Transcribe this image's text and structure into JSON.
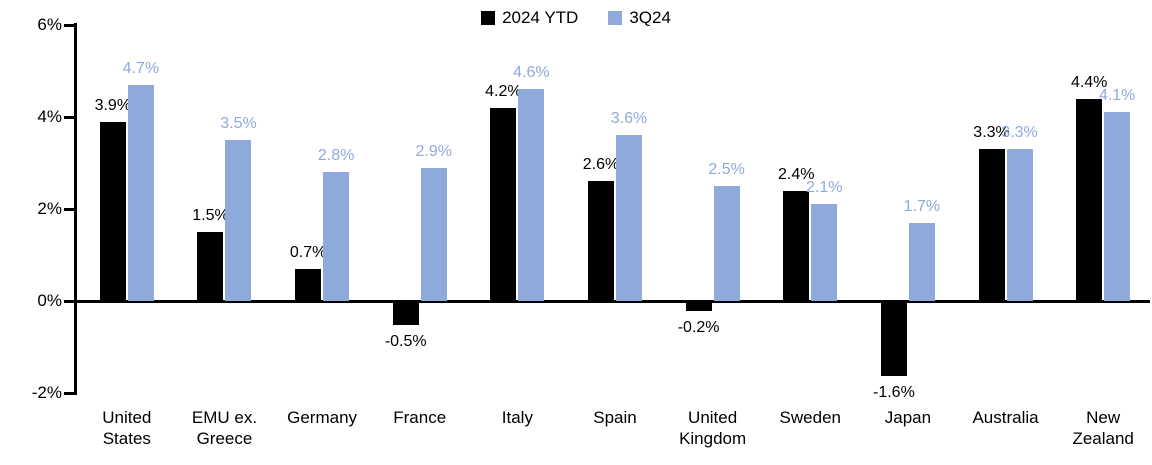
{
  "chart_data": {
    "type": "bar",
    "title": "",
    "xlabel": "",
    "ylabel": "",
    "categories": [
      "United States",
      "EMU ex. Greece",
      "Germany",
      "France",
      "Italy",
      "Spain",
      "United Kingdom",
      "Sweden",
      "Japan",
      "Australia",
      "New Zealand"
    ],
    "series": [
      {
        "name": "2024 YTD",
        "color": "#000000",
        "values": [
          3.9,
          1.5,
          0.7,
          -0.5,
          4.2,
          2.6,
          -0.2,
          2.4,
          -1.6,
          3.3,
          4.4
        ],
        "labels": [
          "3.9%",
          "1.5%",
          "0.7%",
          "-0.5%",
          "4.2%",
          "2.6%",
          "-0.2%",
          "2.4%",
          "-1.6%",
          "3.3%",
          "4.4%"
        ]
      },
      {
        "name": "3Q24",
        "color": "#8EAADB",
        "values": [
          4.7,
          3.5,
          2.8,
          2.9,
          4.6,
          3.6,
          2.5,
          2.1,
          1.7,
          3.3,
          4.1
        ],
        "labels": [
          "4.7%",
          "3.5%",
          "2.8%",
          "2.9%",
          "4.6%",
          "3.6%",
          "2.5%",
          "2.1%",
          "1.7%",
          "3.3%",
          "4.1%"
        ]
      }
    ],
    "ylim": [
      -2,
      6
    ],
    "y_ticks": [
      {
        "value": 6,
        "label": "6%"
      },
      {
        "value": 4,
        "label": "4%"
      },
      {
        "value": 2,
        "label": "2%"
      },
      {
        "value": 0,
        "label": "0%"
      },
      {
        "value": -2,
        "label": "-2%"
      }
    ],
    "grid": false,
    "legend_position": "top-center",
    "axis_color": "#000000",
    "background_color": "#FFFFFF"
  }
}
